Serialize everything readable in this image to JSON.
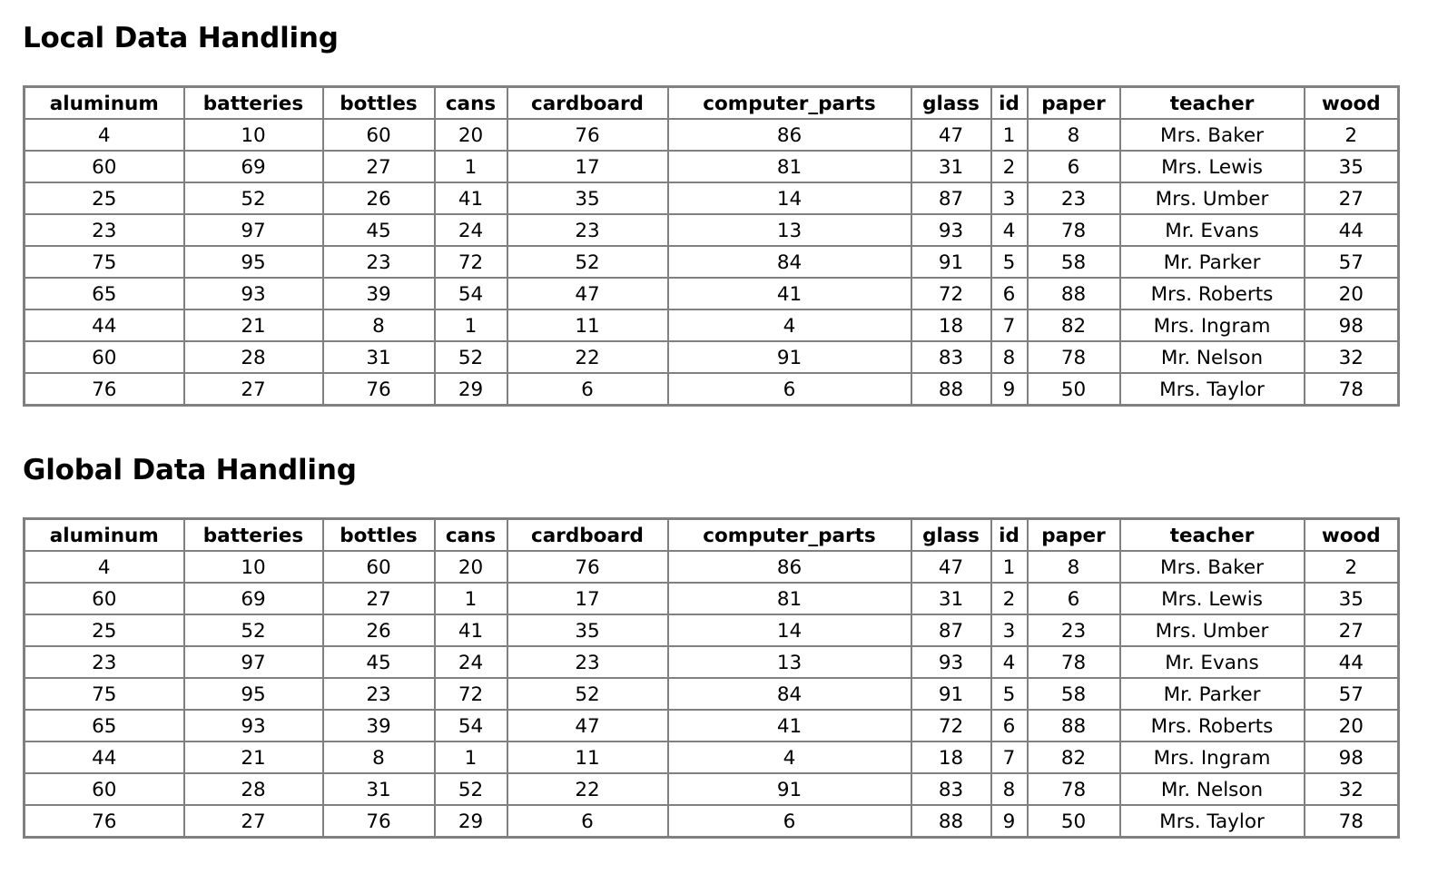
{
  "sections": [
    {
      "title": "Local Data Handling"
    },
    {
      "title": "Global Data Handling"
    }
  ],
  "columns": [
    "aluminum",
    "batteries",
    "bottles",
    "cans",
    "cardboard",
    "computer_parts",
    "glass",
    "id",
    "paper",
    "teacher",
    "wood"
  ],
  "rows": [
    [
      "4",
      "10",
      "60",
      "20",
      "76",
      "86",
      "47",
      "1",
      "8",
      "Mrs. Baker",
      "2"
    ],
    [
      "60",
      "69",
      "27",
      "1",
      "17",
      "81",
      "31",
      "2",
      "6",
      "Mrs. Lewis",
      "35"
    ],
    [
      "25",
      "52",
      "26",
      "41",
      "35",
      "14",
      "87",
      "3",
      "23",
      "Mrs. Umber",
      "27"
    ],
    [
      "23",
      "97",
      "45",
      "24",
      "23",
      "13",
      "93",
      "4",
      "78",
      "Mr. Evans",
      "44"
    ],
    [
      "75",
      "95",
      "23",
      "72",
      "52",
      "84",
      "91",
      "5",
      "58",
      "Mr. Parker",
      "57"
    ],
    [
      "65",
      "93",
      "39",
      "54",
      "47",
      "41",
      "72",
      "6",
      "88",
      "Mrs. Roberts",
      "20"
    ],
    [
      "44",
      "21",
      "8",
      "1",
      "11",
      "4",
      "18",
      "7",
      "82",
      "Mrs. Ingram",
      "98"
    ],
    [
      "60",
      "28",
      "31",
      "52",
      "22",
      "91",
      "83",
      "8",
      "78",
      "Mr. Nelson",
      "32"
    ],
    [
      "76",
      "27",
      "76",
      "29",
      "6",
      "6",
      "88",
      "9",
      "50",
      "Mrs. Taylor",
      "78"
    ]
  ]
}
